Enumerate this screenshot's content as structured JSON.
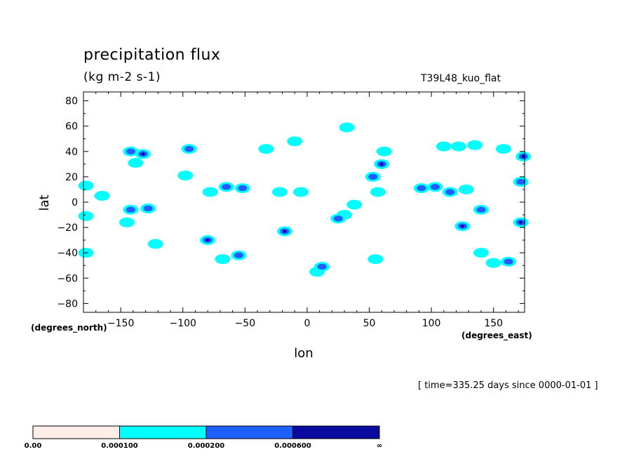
{
  "header": {
    "title": "precipitation flux",
    "units": "(kg m-2 s-1)",
    "run_name": "T39L48_kuo_flat",
    "time_stamp": "[ time=335.25 days since 0000-01-01 ]"
  },
  "axes": {
    "x_title": "lon",
    "y_title": "lat",
    "x_unit": "(degrees_east)",
    "y_unit": "(degrees_north)"
  },
  "colorbar": {
    "labels": [
      "0.00",
      "0.000100",
      "0.000200",
      "0.000600",
      "∞"
    ],
    "colors": [
      "#ffeee8",
      "#00ffff",
      "#1f5eff",
      "#0a0aa0"
    ]
  },
  "chart_data": {
    "type": "heatmap",
    "title": "precipitation flux",
    "subtitle": "(kg m-2 s-1)",
    "xlabel": "lon",
    "ylabel": "lat",
    "xlim": [
      -180,
      175
    ],
    "ylim": [
      -87,
      87
    ],
    "x_ticks": [
      -150,
      -100,
      -50,
      0,
      50,
      100,
      150
    ],
    "y_ticks": [
      80,
      60,
      40,
      20,
      0,
      -20,
      -40,
      -60,
      -80
    ],
    "levels": [
      0.0,
      0.0001,
      0.0002,
      0.0006
    ],
    "colors": [
      "#ffeee8",
      "#00ffff",
      "#1f5eff",
      "#0a0aa0"
    ],
    "blobs": [
      {
        "lon": -178,
        "lat": 13,
        "level": 1
      },
      {
        "lon": -165,
        "lat": 5,
        "level": 1
      },
      {
        "lon": -178,
        "lat": -11,
        "level": 1
      },
      {
        "lon": -178,
        "lat": -40,
        "level": 1
      },
      {
        "lon": -142,
        "lat": 40,
        "level": 2
      },
      {
        "lon": -132,
        "lat": 38,
        "level": 3
      },
      {
        "lon": -138,
        "lat": 31,
        "level": 1
      },
      {
        "lon": -142,
        "lat": -6,
        "level": 2
      },
      {
        "lon": -128,
        "lat": -5,
        "level": 2
      },
      {
        "lon": -145,
        "lat": -16,
        "level": 1
      },
      {
        "lon": -122,
        "lat": -33,
        "level": 1
      },
      {
        "lon": -95,
        "lat": 42,
        "level": 2
      },
      {
        "lon": -98,
        "lat": 21,
        "level": 1
      },
      {
        "lon": -80,
        "lat": -30,
        "level": 3
      },
      {
        "lon": -68,
        "lat": -45,
        "level": 1
      },
      {
        "lon": -55,
        "lat": -42,
        "level": 2
      },
      {
        "lon": -65,
        "lat": 12,
        "level": 2
      },
      {
        "lon": -52,
        "lat": 11,
        "level": 2
      },
      {
        "lon": -78,
        "lat": 8,
        "level": 1
      },
      {
        "lon": -33,
        "lat": 42,
        "level": 1
      },
      {
        "lon": -22,
        "lat": 8,
        "level": 1
      },
      {
        "lon": -5,
        "lat": 8,
        "level": 1
      },
      {
        "lon": -18,
        "lat": -23,
        "level": 3
      },
      {
        "lon": -10,
        "lat": 48,
        "level": 1
      },
      {
        "lon": 8,
        "lat": -55,
        "level": 1
      },
      {
        "lon": 12,
        "lat": -51,
        "level": 2
      },
      {
        "lon": 32,
        "lat": 59,
        "level": 1
      },
      {
        "lon": 38,
        "lat": -2,
        "level": 1
      },
      {
        "lon": 30,
        "lat": -10,
        "level": 1
      },
      {
        "lon": 25,
        "lat": -13,
        "level": 2
      },
      {
        "lon": 60,
        "lat": 30,
        "level": 3
      },
      {
        "lon": 53,
        "lat": 20,
        "level": 2
      },
      {
        "lon": 62,
        "lat": 40,
        "level": 1
      },
      {
        "lon": 57,
        "lat": 8,
        "level": 1
      },
      {
        "lon": 55,
        "lat": -45,
        "level": 1
      },
      {
        "lon": 92,
        "lat": 11,
        "level": 2
      },
      {
        "lon": 103,
        "lat": 12,
        "level": 2
      },
      {
        "lon": 115,
        "lat": 8,
        "level": 2
      },
      {
        "lon": 128,
        "lat": 10,
        "level": 1
      },
      {
        "lon": 125,
        "lat": -19,
        "level": 3
      },
      {
        "lon": 140,
        "lat": -6,
        "level": 2
      },
      {
        "lon": 140,
        "lat": -40,
        "level": 1
      },
      {
        "lon": 150,
        "lat": -48,
        "level": 1
      },
      {
        "lon": 162,
        "lat": -47,
        "level": 2
      },
      {
        "lon": 172,
        "lat": -16,
        "level": 3
      },
      {
        "lon": 174,
        "lat": 36,
        "level": 3
      },
      {
        "lon": 172,
        "lat": 16,
        "level": 2
      },
      {
        "lon": 110,
        "lat": 44,
        "level": 1
      },
      {
        "lon": 122,
        "lat": 44,
        "level": 1
      },
      {
        "lon": 158,
        "lat": 42,
        "level": 1
      },
      {
        "lon": 135,
        "lat": 45,
        "level": 1
      }
    ]
  }
}
